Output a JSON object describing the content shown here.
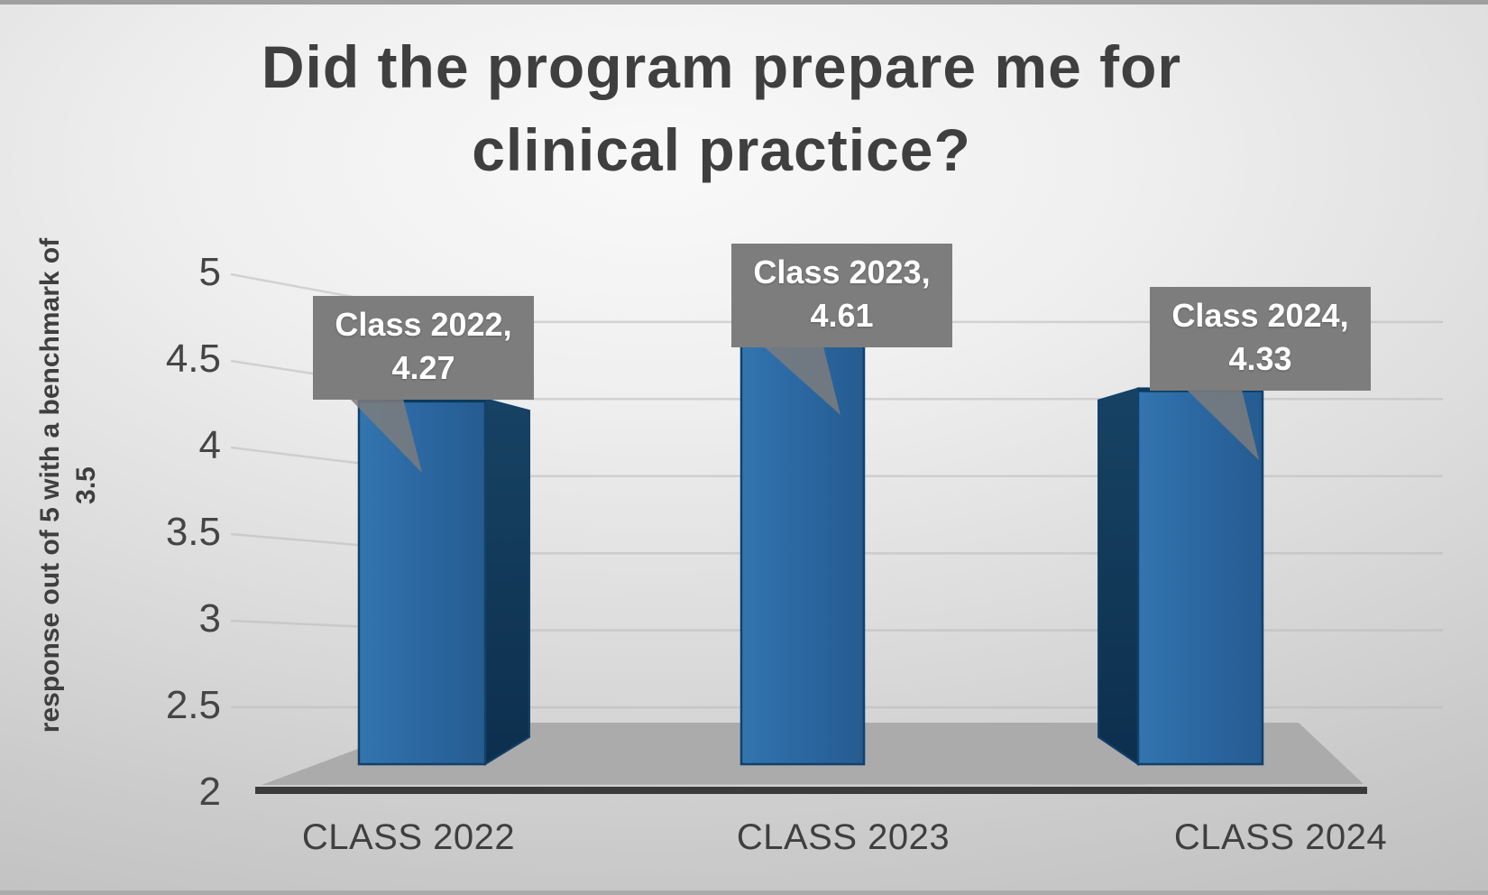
{
  "title": {
    "line1": "Did the program prepare me for",
    "line2": "clinical practice?"
  },
  "y_axis": {
    "title_line1": "response out of 5 with a benchmark of",
    "title_line2": "3.5",
    "ticks": [
      "5",
      "4.5",
      "4",
      "3.5",
      "3",
      "2.5",
      "2"
    ]
  },
  "x_axis": {
    "categories": [
      "CLASS 2022",
      "CLASS 2023",
      "CLASS 2024"
    ]
  },
  "callouts": [
    {
      "line1": "Class 2022,",
      "line2": "4.27"
    },
    {
      "line1": "Class 2023,",
      "line2": "4.61"
    },
    {
      "line1": "Class 2024,",
      "line2": "4.33"
    }
  ],
  "colors": {
    "bar_face_light": "#3375af",
    "bar_face": "#2c68a3",
    "bar_face_dark": "#255c90",
    "bar_side_top": "#174263",
    "bar_side_bottom": "#0d2f4e",
    "bar_outline": "#12416a",
    "bar_top_edge": "#0b3a5e",
    "callout_bg": "#7d7d7d",
    "callout_text": "#ffffff",
    "axis_line": "#3b3b3b",
    "floor": "#ababab",
    "gridline": "#b9b9b9",
    "text": "#3f3f3f"
  },
  "chart_data": {
    "type": "bar",
    "style": "3d-column-with-callout-labels",
    "title": "Did the program prepare me for clinical practice?",
    "categories": [
      "CLASS 2022",
      "CLASS 2023",
      "CLASS 2024"
    ],
    "values": [
      4.27,
      4.61,
      4.33
    ],
    "data_labels": [
      "Class 2022, 4.27",
      "Class 2023, 4.61",
      "Class 2024, 4.33"
    ],
    "xlabel": "",
    "ylabel": "response out of 5 with a benchmark of 3.5",
    "benchmark": 3.5,
    "ylim": [
      2,
      5
    ],
    "ytick_step": 0.5,
    "yticks": [
      5,
      4.5,
      4,
      3.5,
      3,
      2.5,
      2
    ],
    "grid": true,
    "legend": "none"
  }
}
